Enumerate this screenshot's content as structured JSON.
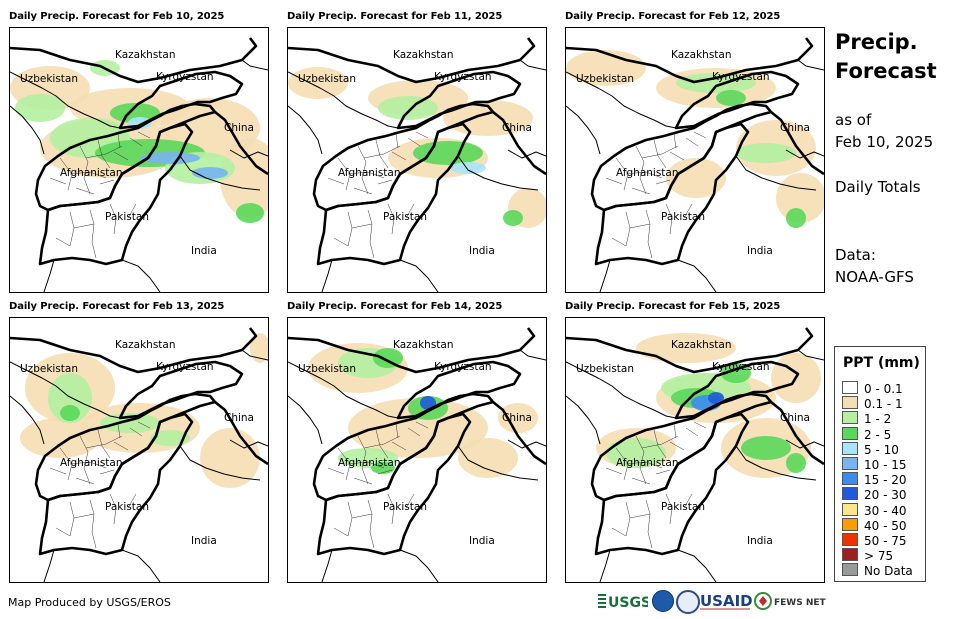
{
  "panels": [
    {
      "title": "Daily Precip. Forecast for Feb 10, 2025",
      "level": 5
    },
    {
      "title": "Daily Precip. Forecast for Feb 11, 2025",
      "level": 2
    },
    {
      "title": "Daily Precip. Forecast for Feb 12, 2025",
      "level": 2
    },
    {
      "title": "Daily Precip. Forecast for Feb 13, 2025",
      "level": 3
    },
    {
      "title": "Daily Precip. Forecast for Feb 14, 2025",
      "level": 3
    },
    {
      "title": "Daily Precip. Forecast for Feb 15, 2025",
      "level": 5
    }
  ],
  "map_labels": {
    "kazakhstan": "Kazakhstan",
    "uzbekistan": "Uzbekistan",
    "kyrgyzstan": "Kyrgyzstan",
    "china": "China",
    "afghanistan": "Afghanistan",
    "pakistan": "Pakistan",
    "india": "India"
  },
  "sidebar": {
    "title_line1": "Precip.",
    "title_line2": "Forecast",
    "asof_line1": "as of",
    "asof_line2": "Feb 10, 2025",
    "totals": "Daily Totals",
    "data_line1": "Data:",
    "data_line2": "NOAA-GFS"
  },
  "legend": {
    "title": "PPT (mm)",
    "items": [
      {
        "label": "0 - 0.1",
        "color": "#ffffff"
      },
      {
        "label": "0.1 - 1",
        "color": "#f5deb3"
      },
      {
        "label": "1 - 2",
        "color": "#b4f0a0"
      },
      {
        "label": "2 - 5",
        "color": "#5ad85a"
      },
      {
        "label": "5 - 10",
        "color": "#a8e4fa"
      },
      {
        "label": "10 - 15",
        "color": "#78b4f0"
      },
      {
        "label": "15 - 20",
        "color": "#3c8cf0"
      },
      {
        "label": "20 - 30",
        "color": "#1e5adc"
      },
      {
        "label": "30 - 40",
        "color": "#fae68c"
      },
      {
        "label": "40 - 50",
        "color": "#fa9b00"
      },
      {
        "label": "50 - 75",
        "color": "#f03200"
      },
      {
        "label": "> 75",
        "color": "#a01e1e"
      },
      {
        "label": "No Data",
        "color": "#999999"
      }
    ]
  },
  "footer": "Map Produced by USGS/EROS",
  "logos": {
    "usgs": "USGS",
    "usaid": "USAID",
    "fewsnet": "FEWS NET"
  }
}
